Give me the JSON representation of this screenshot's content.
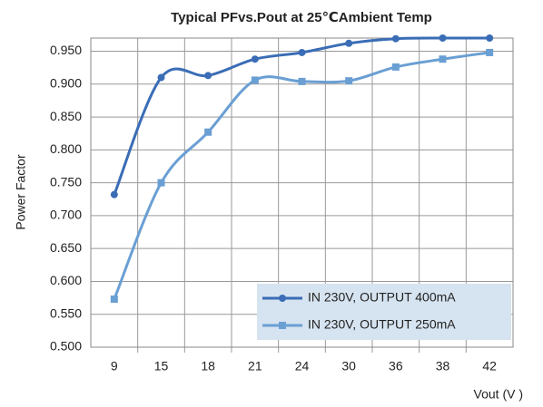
{
  "chart_data": {
    "type": "line",
    "title": "Typical PFvs.Pout at 25℃Ambient Temp",
    "x_label": "Vout (V )",
    "y_label": "Power Factor",
    "categories": [
      "9",
      "15",
      "18",
      "21",
      "24",
      "30",
      "36",
      "38",
      "42"
    ],
    "series": [
      {
        "name": "IN 230V, OUTPUT 400mA",
        "color": "#3a6db5",
        "marker": "circle",
        "values": [
          0.732,
          0.91,
          0.913,
          0.938,
          0.948,
          0.962,
          0.969,
          0.97,
          0.97
        ]
      },
      {
        "name": "IN 230V, OUTPUT 250mA",
        "color": "#6a9fd4",
        "marker": "square",
        "values": [
          0.573,
          0.75,
          0.827,
          0.906,
          0.904,
          0.905,
          0.926,
          0.938,
          0.948
        ]
      }
    ],
    "ylim": [
      0.5,
      0.97
    ],
    "yticks": [
      {
        "value": 0.5,
        "label": "0.500"
      },
      {
        "value": 0.55,
        "label": "0.550"
      },
      {
        "value": 0.6,
        "label": "0.600"
      },
      {
        "value": 0.65,
        "label": "0.650"
      },
      {
        "value": 0.7,
        "label": "0.700"
      },
      {
        "value": 0.75,
        "label": "0.750"
      },
      {
        "value": 0.8,
        "label": "0.800"
      },
      {
        "value": 0.85,
        "label": "0.850"
      },
      {
        "value": 0.9,
        "label": "0.900"
      },
      {
        "value": 0.95,
        "label": "0.950"
      }
    ],
    "grid": true,
    "legend": "lower right"
  }
}
